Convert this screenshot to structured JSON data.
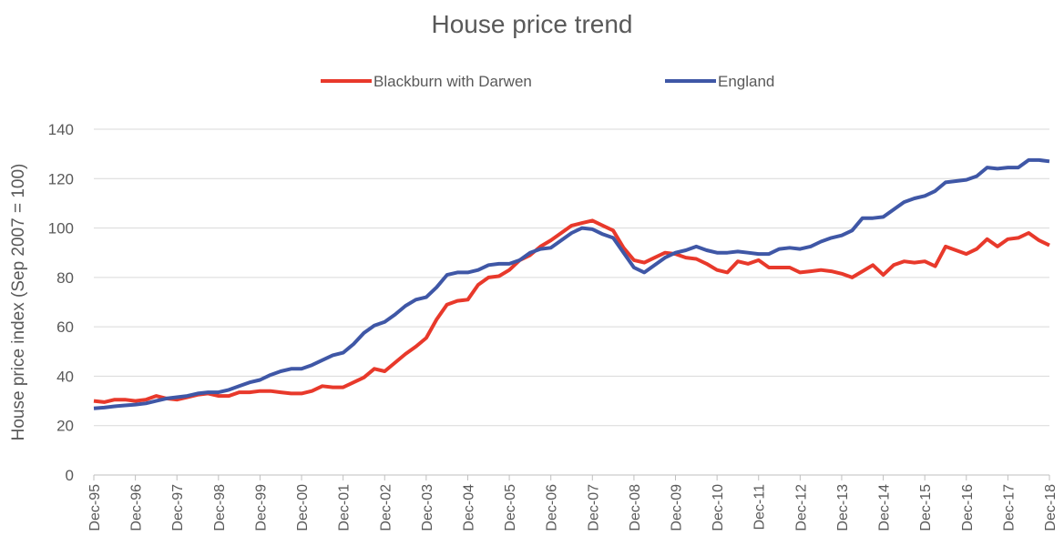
{
  "chart_data": {
    "type": "line",
    "title": "House price trend",
    "y_label": "House price index (Sep 2007 = 100)",
    "categories": [
      "Dec-95",
      null,
      null,
      null,
      "Dec-96",
      null,
      null,
      null,
      "Dec-97",
      null,
      null,
      null,
      "Dec-98",
      null,
      null,
      null,
      "Dec-99",
      null,
      null,
      null,
      "Dec-00",
      null,
      null,
      null,
      "Dec-01",
      null,
      null,
      null,
      "Dec-02",
      null,
      null,
      null,
      "Dec-03",
      null,
      null,
      null,
      "Dec-04",
      null,
      null,
      null,
      "Dec-05",
      null,
      null,
      null,
      "Dec-06",
      null,
      null,
      null,
      "Dec-07",
      null,
      null,
      null,
      "Dec-08",
      null,
      null,
      null,
      "Dec-09",
      null,
      null,
      null,
      "Dec-10",
      null,
      null,
      null,
      "Dec-11",
      null,
      null,
      null,
      "Dec-12",
      null,
      null,
      null,
      "Dec-13",
      null,
      null,
      null,
      "Dec-14",
      null,
      null,
      null,
      "Dec-15",
      null,
      null,
      null,
      "Dec-16",
      null,
      null,
      null,
      "Dec-17",
      null,
      null,
      null,
      "Dec-18"
    ],
    "series": [
      {
        "name": "Blackburn with Darwen",
        "color": "#e8392b",
        "values": [
          30,
          29.5,
          30.5,
          30.5,
          30,
          30.5,
          32,
          31,
          30.5,
          31.5,
          32.5,
          33,
          32,
          32,
          33.5,
          33.5,
          34,
          34,
          33.5,
          33,
          33,
          34,
          36,
          35.5,
          35.5,
          37.5,
          39.5,
          43,
          42,
          45.5,
          49,
          52,
          55.5,
          63,
          69,
          70.5,
          71,
          77,
          80,
          80.5,
          83,
          87,
          89,
          92.5,
          95,
          98,
          101,
          102,
          103,
          101,
          99,
          92,
          87,
          86,
          88,
          90,
          89.5,
          88,
          87.5,
          85.5,
          83,
          82,
          86.5,
          85.5,
          87,
          84,
          84,
          84,
          82,
          82.5,
          83,
          82.5,
          81.5,
          80,
          82.5,
          85,
          81,
          85,
          86.5,
          86,
          86.5,
          84.5,
          92.5,
          91,
          89.5,
          91.5,
          95.5,
          92.5,
          95.5,
          96,
          98,
          95,
          93
        ]
      },
      {
        "name": "England",
        "color": "#3f57a6",
        "values": [
          27,
          27.3,
          27.8,
          28.2,
          28.5,
          29,
          30,
          31,
          31.5,
          32,
          33,
          33.5,
          33.5,
          34.5,
          36,
          37.5,
          38.5,
          40.5,
          42,
          43,
          43,
          44.5,
          46.5,
          48.5,
          49.5,
          53,
          57.5,
          60.5,
          62,
          65,
          68.5,
          71,
          72,
          76,
          81,
          82,
          82,
          83,
          85,
          85.5,
          85.5,
          87,
          90,
          91.5,
          92,
          95,
          98,
          100,
          99.5,
          97.5,
          96,
          90,
          84,
          82,
          85,
          88,
          90,
          91,
          92.5,
          91,
          90,
          90,
          90.5,
          90,
          89.5,
          89.5,
          91.5,
          92,
          91.5,
          92.5,
          94.5,
          96,
          97,
          99,
          104,
          104,
          104.5,
          107.5,
          110.5,
          112,
          113,
          115,
          118.5,
          119,
          119.5,
          121,
          124.5,
          124,
          124.5,
          124.5,
          127.5,
          127.5,
          127
        ]
      }
    ],
    "ylim": [
      0,
      140
    ],
    "yticks": [
      0,
      20,
      40,
      60,
      80,
      100,
      120,
      140
    ],
    "grid": true,
    "legend": "top"
  }
}
